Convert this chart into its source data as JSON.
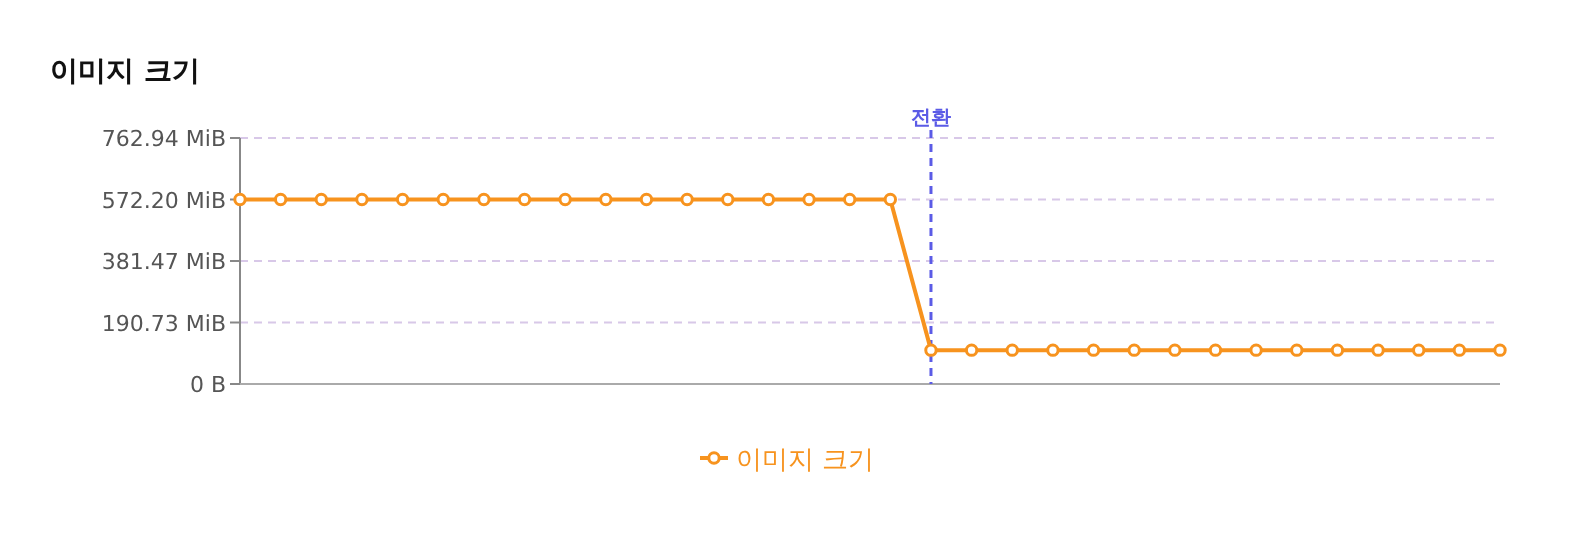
{
  "chart_data": {
    "type": "line",
    "title": "이미지 크기",
    "categories": [
      null,
      null,
      null,
      null,
      null,
      null,
      null,
      null,
      null,
      null,
      null,
      null,
      null,
      null,
      null,
      null,
      null,
      null,
      null,
      null,
      null,
      null,
      null,
      null,
      null,
      null,
      null,
      null,
      null,
      null,
      null,
      null
    ],
    "series": [
      {
        "name": "이미지 크기",
        "color": "#f7931e",
        "values": [
          572,
          572,
          572,
          572,
          572,
          572,
          572,
          572,
          572,
          572,
          572,
          572,
          572,
          572,
          572,
          572,
          572,
          105,
          105,
          105,
          105,
          105,
          105,
          105,
          105,
          105,
          105,
          105,
          105,
          105,
          105,
          105
        ]
      }
    ],
    "ylim": [
      0,
      762.94
    ],
    "yticks": [
      {
        "value": 0,
        "label": "0 B"
      },
      {
        "value": 190.73,
        "label": "190.73 MiB"
      },
      {
        "value": 381.47,
        "label": "381.47 MiB"
      },
      {
        "value": 572.2,
        "label": "572.20 MiB"
      },
      {
        "value": 762.94,
        "label": "762.94 MiB"
      }
    ],
    "grid": "y",
    "legend": "bottom",
    "marker": "circle",
    "tick_labels": "y",
    "annotations": [
      "전환"
    ]
  }
}
